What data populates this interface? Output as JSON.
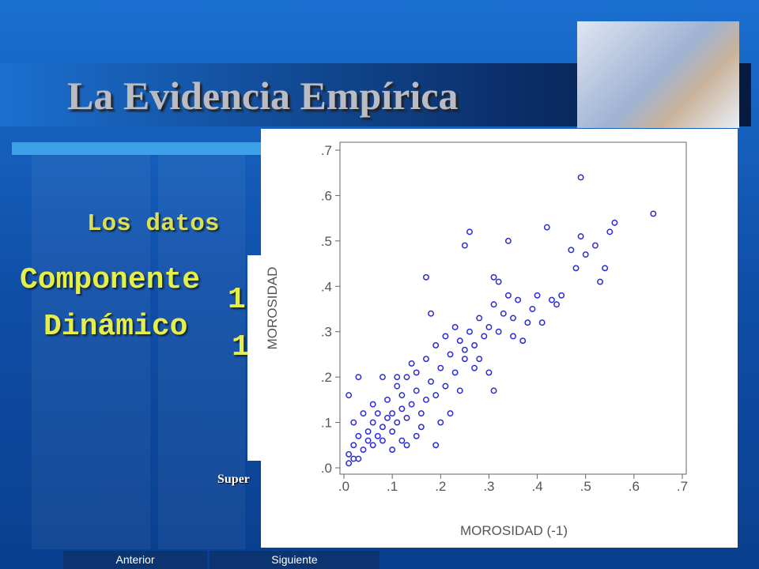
{
  "slide": {
    "title": "La Evidencia Empírica",
    "texts": [
      "Los datos",
      "Componente",
      "Dinámico",
      "1",
      "1",
      "Super"
    ]
  },
  "navigation": {
    "previous": "Anterior",
    "next": "Siguiente"
  },
  "chart_data": {
    "type": "scatter",
    "x_label": "MOROSIDAD (-1)",
    "y_label": "MOROSIDAD",
    "color": "#2b2bd6",
    "x": [
      0.01,
      0.02,
      0.01,
      0.03,
      0.02,
      0.04,
      0.05,
      0.03,
      0.06,
      0.05,
      0.07,
      0.08,
      0.06,
      0.08,
      0.09,
      0.1,
      0.07,
      0.1,
      0.11,
      0.12,
      0.09,
      0.12,
      0.13,
      0.14,
      0.11,
      0.15,
      0.13,
      0.16,
      0.17,
      0.15,
      0.18,
      0.14,
      0.19,
      0.2,
      0.17,
      0.21,
      0.22,
      0.19,
      0.23,
      0.24,
      0.21,
      0.25,
      0.26,
      0.23,
      0.27,
      0.28,
      0.25,
      0.29,
      0.3,
      0.31,
      0.32,
      0.33,
      0.34,
      0.35,
      0.36,
      0.38,
      0.4,
      0.41,
      0.43,
      0.44,
      0.47,
      0.48,
      0.49,
      0.5,
      0.52,
      0.53,
      0.54,
      0.55,
      0.56,
      0.64,
      0.49,
      0.42,
      0.26,
      0.34,
      0.25,
      0.17,
      0.31,
      0.32,
      0.11,
      0.08,
      0.03,
      0.01,
      0.15,
      0.2,
      0.24,
      0.19,
      0.13,
      0.02,
      0.04,
      0.06,
      0.16,
      0.22,
      0.1,
      0.12,
      0.31,
      0.37,
      0.28,
      0.45,
      0.39,
      0.3,
      0.18,
      0.27,
      0.35
    ],
    "y": [
      0.01,
      0.02,
      0.03,
      0.02,
      0.05,
      0.04,
      0.06,
      0.07,
      0.05,
      0.08,
      0.07,
      0.06,
      0.1,
      0.09,
      0.11,
      0.08,
      0.12,
      0.12,
      0.1,
      0.13,
      0.15,
      0.16,
      0.11,
      0.14,
      0.18,
      0.17,
      0.2,
      0.12,
      0.15,
      0.21,
      0.19,
      0.23,
      0.16,
      0.22,
      0.24,
      0.18,
      0.25,
      0.27,
      0.21,
      0.28,
      0.29,
      0.24,
      0.3,
      0.31,
      0.27,
      0.33,
      0.26,
      0.29,
      0.31,
      0.36,
      0.3,
      0.34,
      0.38,
      0.33,
      0.37,
      0.32,
      0.38,
      0.32,
      0.37,
      0.36,
      0.48,
      0.44,
      0.51,
      0.47,
      0.49,
      0.41,
      0.44,
      0.52,
      0.54,
      0.56,
      0.64,
      0.53,
      0.52,
      0.5,
      0.49,
      0.42,
      0.42,
      0.41,
      0.2,
      0.2,
      0.2,
      0.16,
      0.07,
      0.1,
      0.17,
      0.05,
      0.05,
      0.1,
      0.12,
      0.14,
      0.09,
      0.12,
      0.04,
      0.06,
      0.17,
      0.28,
      0.24,
      0.38,
      0.35,
      0.21,
      0.34,
      0.22,
      0.29
    ],
    "xlim": [
      0,
      0.7
    ],
    "ylim": [
      0,
      0.7
    ],
    "xticks": [
      {
        "value": 0,
        "label": ".0"
      },
      {
        "value": 0.1,
        "label": ".1"
      },
      {
        "value": 0.2,
        "label": ".2"
      },
      {
        "value": 0.3,
        "label": ".3"
      },
      {
        "value": 0.4,
        "label": ".4"
      },
      {
        "value": 0.5,
        "label": ".5"
      },
      {
        "value": 0.6,
        "label": ".6"
      },
      {
        "value": 0.7,
        "label": ".7"
      }
    ],
    "yticks": [
      {
        "value": 0,
        "label": ".0"
      },
      {
        "value": 0.1,
        "label": ".1"
      },
      {
        "value": 0.2,
        "label": ".2"
      },
      {
        "value": 0.3,
        "label": ".3"
      },
      {
        "value": 0.4,
        "label": ".4"
      },
      {
        "value": 0.5,
        "label": ".5"
      },
      {
        "value": 0.6,
        "label": ".6"
      },
      {
        "value": 0.7,
        "label": ".7"
      }
    ]
  }
}
